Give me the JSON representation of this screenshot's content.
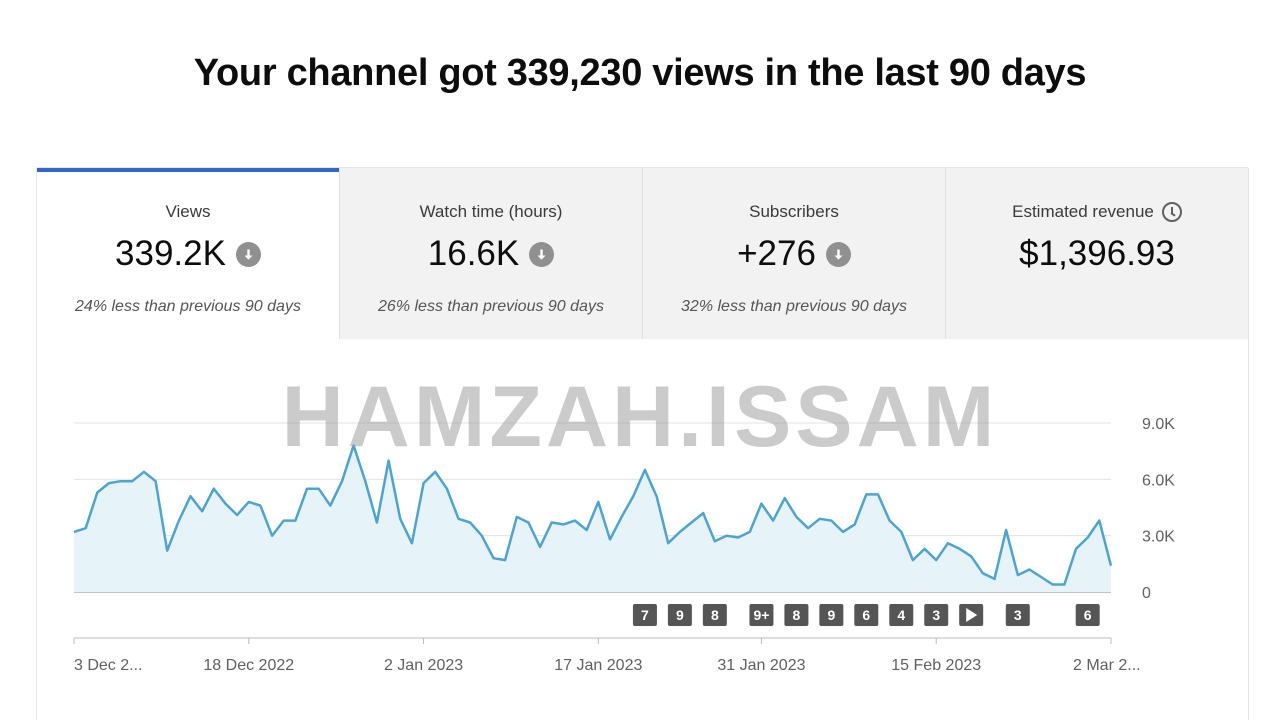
{
  "headline": "Your channel got 339,230 views in the last 90 days",
  "tabs": [
    {
      "label": "Views",
      "value": "339.2K",
      "compare": "24% less than previous 90 days",
      "active": true,
      "icon": "down-arrow-icon"
    },
    {
      "label": "Watch time (hours)",
      "value": "16.6K",
      "compare": "26% less than previous 90 days",
      "active": false,
      "icon": "down-arrow-icon"
    },
    {
      "label": "Subscribers",
      "value": "+276",
      "compare": "32% less than previous 90 days",
      "active": false,
      "icon": "down-arrow-icon"
    },
    {
      "label": "Estimated revenue",
      "value": "$1,396.93",
      "compare": "",
      "active": false,
      "icon": "clock-icon"
    }
  ],
  "watermark": "HAMZAH.ISSAM",
  "colors": {
    "accent": "#3366cc",
    "line": "#4fa3cf",
    "fill": "#e6f3f9",
    "marker": "#555555"
  },
  "chart_data": {
    "type": "area",
    "y_ticks": [
      "9.0K",
      "6.0K",
      "3.0K",
      "0"
    ],
    "ylim": [
      0,
      9000
    ],
    "x_tick_labels": [
      "3 Dec 2...",
      "18 Dec 2022",
      "2 Jan 2023",
      "17 Jan 2023",
      "31 Jan 2023",
      "15 Feb 2023",
      "2 Mar 2..."
    ],
    "x_tick_days": [
      0,
      15,
      30,
      45,
      59,
      74,
      89
    ],
    "values": [
      3200,
      3400,
      5300,
      5800,
      5900,
      5900,
      6400,
      5900,
      2200,
      3800,
      5100,
      4300,
      5500,
      4700,
      4100,
      4800,
      4600,
      3000,
      3800,
      3800,
      5500,
      5500,
      4600,
      5900,
      7800,
      5900,
      3700,
      7000,
      3900,
      2600,
      5800,
      6400,
      5500,
      3900,
      3700,
      3000,
      1800,
      1700,
      4000,
      3700,
      2400,
      3700,
      3600,
      3800,
      3300,
      4800,
      2800,
      4000,
      5100,
      6500,
      5100,
      2600,
      3200,
      3700,
      4200,
      2700,
      3000,
      2900,
      3200,
      4700,
      3800,
      5000,
      4000,
      3400,
      3900,
      3800,
      3200,
      3600,
      5200,
      5200,
      3800,
      3200,
      1700,
      2300,
      1700,
      2600,
      2300,
      1900,
      1000,
      700,
      3300,
      900,
      1200,
      800,
      400,
      400,
      2300,
      2900,
      3800,
      1400
    ],
    "markers": [
      {
        "label": "7",
        "day": 49
      },
      {
        "label": "9",
        "day": 52
      },
      {
        "label": "8",
        "day": 55
      },
      {
        "label": "9+",
        "day": 59
      },
      {
        "label": "8",
        "day": 62
      },
      {
        "label": "9",
        "day": 65
      },
      {
        "label": "6",
        "day": 68
      },
      {
        "label": "4",
        "day": 71
      },
      {
        "label": "3",
        "day": 74
      },
      {
        "label": "play",
        "day": 77,
        "icon": "play-icon"
      },
      {
        "label": "3",
        "day": 81
      },
      {
        "label": "6",
        "day": 87
      }
    ]
  }
}
